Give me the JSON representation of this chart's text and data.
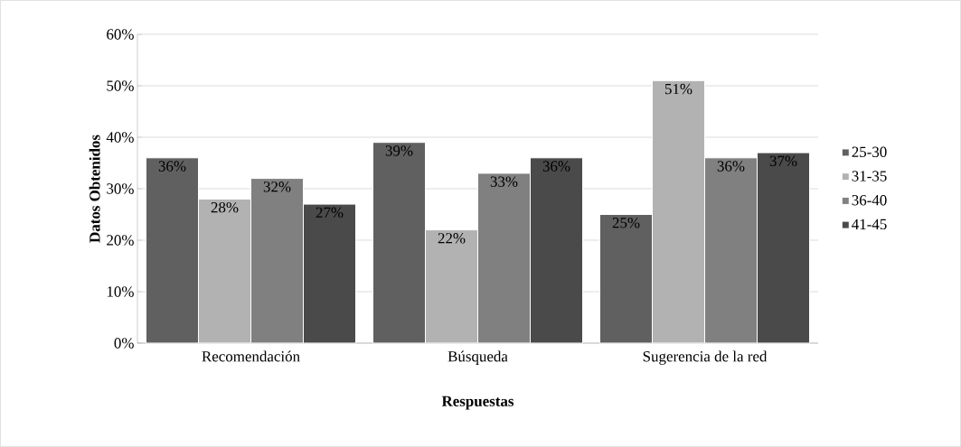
{
  "chart_data": {
    "type": "bar",
    "xlabel": "Respuestas",
    "ylabel": "Datos Obtenidos",
    "categories": [
      "Recomendación",
      "Búsqueda",
      "Sugerencia de la red"
    ],
    "series": [
      {
        "name": "25-30",
        "color": "#606060",
        "values": [
          36,
          39,
          25
        ],
        "value_labels": [
          "36%",
          "39%",
          "25%"
        ]
      },
      {
        "name": "31-35",
        "color": "#b2b2b2",
        "values": [
          28,
          22,
          51
        ],
        "value_labels": [
          "28%",
          "22%",
          "51%"
        ]
      },
      {
        "name": "36-40",
        "color": "#808080",
        "values": [
          32,
          33,
          36
        ],
        "value_labels": [
          "32%",
          "33%",
          "36%"
        ]
      },
      {
        "name": "41-45",
        "color": "#4a4a4a",
        "values": [
          27,
          36,
          37
        ],
        "value_labels": [
          "27%",
          "36%",
          "37%"
        ]
      }
    ],
    "ylim": [
      0,
      60
    ],
    "yticks": [
      {
        "value": 0,
        "label": "0%"
      },
      {
        "value": 10,
        "label": "10%"
      },
      {
        "value": 20,
        "label": "20%"
      },
      {
        "value": 30,
        "label": "30%"
      },
      {
        "value": 40,
        "label": "40%"
      },
      {
        "value": 50,
        "label": "50%"
      },
      {
        "value": 60,
        "label": "60%"
      }
    ],
    "grid": "y",
    "legend": "right"
  }
}
